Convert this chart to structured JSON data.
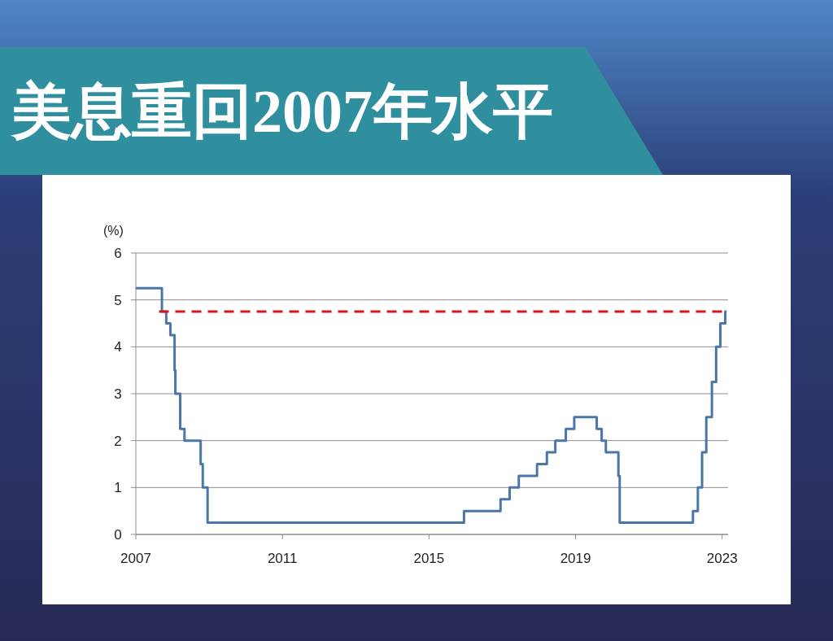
{
  "chart_data": {
    "type": "step",
    "title": "美息重回2007年水平",
    "ylabel": "(%)",
    "xlim": [
      "2007-01-01",
      "2023-03-01"
    ],
    "xticks": [
      "2007",
      "2011",
      "2015",
      "2019",
      "2023"
    ],
    "ylim": [
      0,
      6
    ],
    "yticks": [
      0,
      1,
      2,
      3,
      4,
      5,
      6
    ],
    "grid": "y",
    "series": [
      {
        "type": "step",
        "color": "#4a76a8",
        "line_style": "solid",
        "x": [
          "2007-01-01",
          "2007-09-18",
          "2007-10-31",
          "2007-12-11",
          "2008-01-22",
          "2008-01-30",
          "2008-03-18",
          "2008-04-30",
          "2008-10-08",
          "2008-10-29",
          "2008-12-16",
          "2015-12-16",
          "2016-12-14",
          "2017-03-15",
          "2017-06-14",
          "2017-12-13",
          "2018-03-21",
          "2018-06-13",
          "2018-09-26",
          "2018-12-19",
          "2019-07-31",
          "2019-09-18",
          "2019-10-30",
          "2020-03-03",
          "2020-03-16",
          "2022-03-16",
          "2022-05-04",
          "2022-06-15",
          "2022-07-27",
          "2022-09-21",
          "2022-11-02",
          "2022-12-14",
          "2023-02-01",
          "2023-02-15"
        ],
        "values": [
          5.25,
          4.75,
          4.5,
          4.25,
          3.5,
          3,
          2.25,
          2,
          1.5,
          1,
          0.25,
          0.5,
          0.75,
          1,
          1.25,
          1.5,
          1.75,
          2,
          2.25,
          2.5,
          2.25,
          2,
          1.75,
          1.25,
          0.25,
          0.5,
          1,
          1.75,
          2.5,
          3.25,
          4,
          4.5,
          4.75,
          4.75
        ]
      },
      {
        "type": "line",
        "color": "#d9141b",
        "line_style": "dashed",
        "x": [
          "2007-08-20",
          "2023-03-01"
        ],
        "values": [
          4.75,
          4.75
        ]
      }
    ]
  }
}
